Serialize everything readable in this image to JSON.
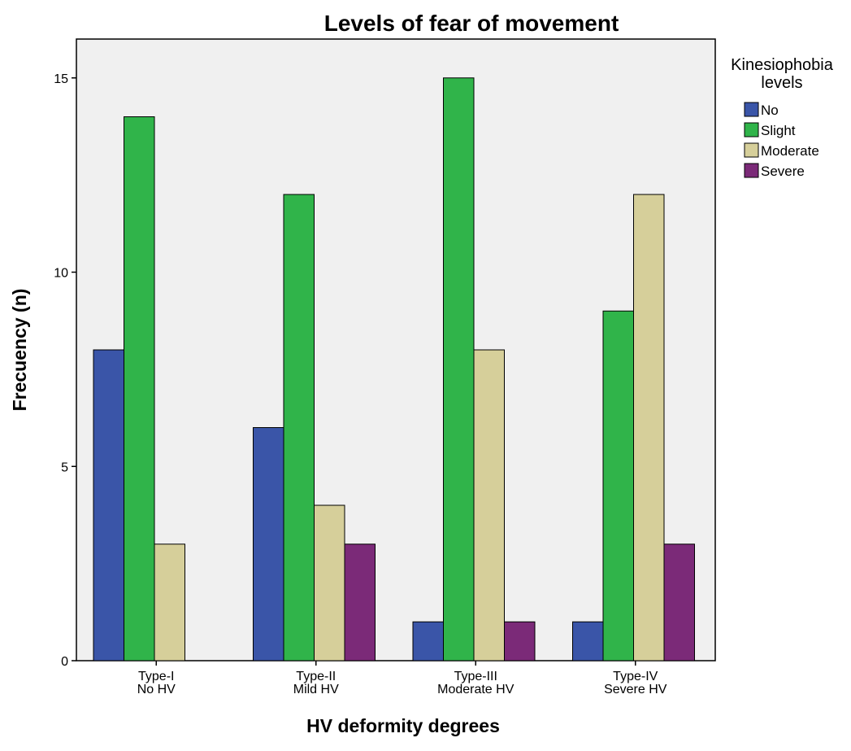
{
  "chart_data": {
    "type": "bar",
    "title": "Levels of fear of movement",
    "xlabel": "HV deformity degrees",
    "ylabel": "Frecuency (n)",
    "ylim": [
      0,
      16
    ],
    "yticks": [
      0,
      5,
      10,
      15
    ],
    "grid": false,
    "legend_position": "right",
    "legend_title": "Kinesiophobia levels",
    "categories": [
      [
        "Type-I",
        "No HV"
      ],
      [
        "Type-II",
        "Mild HV"
      ],
      [
        "Type-III",
        "Moderate HV"
      ],
      [
        "Type-IV",
        "Severe HV"
      ]
    ],
    "series": [
      {
        "name": "No",
        "color": "#3a55a8",
        "values": [
          8,
          6,
          1,
          1
        ]
      },
      {
        "name": "Slight",
        "color": "#30b44a",
        "values": [
          14,
          12,
          15,
          9
        ]
      },
      {
        "name": "Moderate",
        "color": "#d6cf9a",
        "values": [
          3,
          4,
          8,
          12
        ]
      },
      {
        "name": "Severe",
        "color": "#7b2a78",
        "values": [
          0,
          3,
          1,
          3
        ]
      }
    ],
    "plot_background": "#f0f0f0"
  }
}
